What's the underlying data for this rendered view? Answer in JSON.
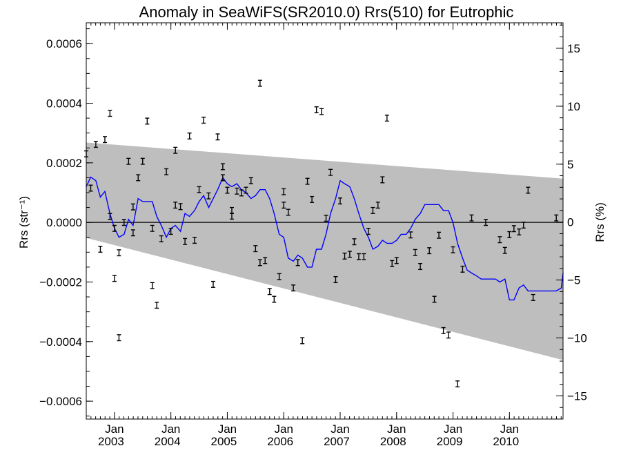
{
  "chart_data": {
    "type": "line",
    "title": "Anomaly in SeaWiFS(SR2010.0) Rrs(510) for Eutrophic",
    "ylabel_left": "Rrs (str⁻¹)",
    "ylabel_right": "Rrs (%)",
    "xlim": [
      2002.5,
      2010.95
    ],
    "ylim": [
      -0.00066,
      0.00067
    ],
    "y2lim": [
      -17,
      17.2
    ],
    "x_ticks": [
      {
        "x": 2003.0,
        "label": "Jan",
        "year": "2003"
      },
      {
        "x": 2004.0,
        "label": "Jan",
        "year": "2004"
      },
      {
        "x": 2005.0,
        "label": "Jan",
        "year": "2005"
      },
      {
        "x": 2006.0,
        "label": "Jan",
        "year": "2006"
      },
      {
        "x": 2007.0,
        "label": "Jan",
        "year": "2007"
      },
      {
        "x": 2008.0,
        "label": "Jan",
        "year": "2008"
      },
      {
        "x": 2009.0,
        "label": "Jan",
        "year": "2009"
      },
      {
        "x": 2010.0,
        "label": "Jan",
        "year": "2010"
      }
    ],
    "y_ticks": [
      {
        "v": 0.0006,
        "label": "0.0006"
      },
      {
        "v": 0.0004,
        "label": "0.0004"
      },
      {
        "v": 0.0002,
        "label": "0.0002"
      },
      {
        "v": 0.0,
        "label": "0.0000"
      },
      {
        "v": -0.0002,
        "label": "−0.0002"
      },
      {
        "v": -0.0004,
        "label": "−0.0004"
      },
      {
        "v": -0.0006,
        "label": "−0.0006"
      }
    ],
    "y2_ticks": [
      {
        "v": 15,
        "label": "15"
      },
      {
        "v": 10,
        "label": "10"
      },
      {
        "v": 5,
        "label": "5"
      },
      {
        "v": 0,
        "label": "0"
      },
      {
        "v": -5,
        "label": "−5"
      },
      {
        "v": -10,
        "label": "−10"
      },
      {
        "v": -15,
        "label": "−15"
      }
    ],
    "band": {
      "x": [
        2002.5,
        2010.95
      ],
      "upper": [
        0.000268,
        0.000147
      ],
      "lower": [
        -5.2e-05,
        -0.000462
      ],
      "color": "#bebebe"
    },
    "zero_line": 0.0,
    "series": [
      {
        "type": "line",
        "color": "#0000ff",
        "x": [
          2002.5,
          2002.58,
          2002.67,
          2002.75,
          2002.83,
          2002.92,
          2003.0,
          2003.08,
          2003.17,
          2003.25,
          2003.33,
          2003.42,
          2003.5,
          2003.58,
          2003.67,
          2003.75,
          2003.83,
          2003.92,
          2004.0,
          2004.08,
          2004.17,
          2004.25,
          2004.33,
          2004.42,
          2004.5,
          2004.58,
          2004.67,
          2004.75,
          2004.83,
          2004.92,
          2005.0,
          2005.08,
          2005.17,
          2005.25,
          2005.33,
          2005.42,
          2005.5,
          2005.58,
          2005.67,
          2005.75,
          2005.83,
          2005.92,
          2006.0,
          2006.08,
          2006.17,
          2006.25,
          2006.33,
          2006.42,
          2006.5,
          2006.58,
          2006.67,
          2006.75,
          2006.83,
          2006.92,
          2007.0,
          2007.08,
          2007.17,
          2007.25,
          2007.33,
          2007.42,
          2007.5,
          2007.58,
          2007.67,
          2007.75,
          2007.83,
          2007.92,
          2008.0,
          2008.08,
          2008.17,
          2008.25,
          2008.33,
          2008.42,
          2008.5,
          2008.58,
          2008.67,
          2008.75,
          2008.83,
          2008.92,
          2009.0,
          2009.08,
          2009.17,
          2009.25,
          2009.33,
          2009.42,
          2009.5,
          2009.58,
          2009.67,
          2009.75,
          2009.83,
          2009.92,
          2010.0,
          2010.08,
          2010.17,
          2010.25,
          2010.33,
          2010.42,
          2010.5,
          2010.58,
          2010.67,
          2010.75,
          2010.83,
          2010.92,
          2010.95
        ],
        "y": [
          0.00012,
          0.000152,
          0.00014,
          8.5e-05,
          0.000104,
          3e-05,
          -2e-05,
          -5e-05,
          -4e-05,
          1e-05,
          -1e-05,
          8e-05,
          7e-05,
          7e-05,
          7e-05,
          2e-05,
          -1e-05,
          -5e-05,
          -2e-05,
          -1e-05,
          -3e-05,
          3e-05,
          2e-05,
          4e-05,
          7e-05,
          9e-05,
          5e-05,
          8e-05,
          0.00011,
          0.00015,
          0.00013,
          0.00012,
          0.00013,
          0.00011,
          0.0001,
          8e-05,
          9e-05,
          0.00011,
          0.00011,
          8e-05,
          3e-05,
          -4e-05,
          -5e-05,
          -0.00012,
          -0.00013,
          -0.00011,
          -0.00012,
          -0.00015,
          -0.00015,
          -9e-05,
          -9e-05,
          -4e-05,
          3e-05,
          8e-05,
          0.00014,
          0.00013,
          0.00012,
          8e-05,
          3e-05,
          -2e-05,
          -5e-05,
          -9e-05,
          -8e-05,
          -6e-05,
          -7e-05,
          -7e-05,
          -6e-05,
          -4e-05,
          -4e-05,
          -2e-05,
          1e-05,
          3e-05,
          6e-05,
          6e-05,
          6e-05,
          6e-05,
          4e-05,
          4e-05,
          0.0,
          -7e-05,
          -0.00012,
          -0.00016,
          -0.00017,
          -0.00018,
          -0.00019,
          -0.00019,
          -0.00019,
          -0.00019,
          -0.0002,
          -0.00019,
          -0.00026,
          -0.00026,
          -0.00022,
          -0.00021,
          -0.00023,
          -0.00023,
          -0.00023,
          -0.00023,
          -0.00023,
          -0.00023,
          -0.00023,
          -0.00022,
          -0.00017
        ]
      },
      {
        "type": "errorbar",
        "color": "#000000",
        "err": 1e-05,
        "x": [
          2002.5,
          2002.58,
          2002.67,
          2002.75,
          2002.83,
          2002.92,
          2002.92,
          2003.0,
          2003.0,
          2003.08,
          2003.08,
          2003.17,
          2003.25,
          2003.33,
          2003.33,
          2003.42,
          2003.5,
          2003.58,
          2003.67,
          2003.67,
          2003.75,
          2003.83,
          2003.92,
          2004.0,
          2004.08,
          2004.08,
          2004.17,
          2004.25,
          2004.33,
          2004.42,
          2004.5,
          2004.58,
          2004.67,
          2004.75,
          2004.83,
          2004.92,
          2004.92,
          2005.0,
          2005.08,
          2005.08,
          2005.17,
          2005.25,
          2005.33,
          2005.42,
          2005.5,
          2005.58,
          2005.58,
          2005.67,
          2005.75,
          2005.83,
          2005.92,
          2006.0,
          2006.0,
          2006.08,
          2006.17,
          2006.25,
          2006.33,
          2006.42,
          2006.5,
          2006.58,
          2006.67,
          2006.75,
          2006.83,
          2006.92,
          2007.0,
          2007.08,
          2007.17,
          2007.25,
          2007.33,
          2007.42,
          2007.5,
          2007.58,
          2007.67,
          2007.75,
          2007.83,
          2007.92,
          2008.0,
          2008.25,
          2008.33,
          2008.42,
          2008.58,
          2008.67,
          2008.75,
          2008.83,
          2008.92,
          2009.0,
          2009.08,
          2009.17,
          2009.33,
          2009.58,
          2009.83,
          2009.92,
          2010.0,
          2010.08,
          2010.17,
          2010.25,
          2010.33,
          2010.42,
          2010.83
        ],
        "y": [
          0.00023,
          0.000115,
          0.000262,
          -9e-05,
          0.000278,
          2e-05,
          0.000366,
          -2e-05,
          -0.000188,
          -0.000102,
          -0.000387,
          0.0,
          0.000205,
          -3.5e-05,
          5.2e-05,
          0.00015,
          0.000205,
          0.00034,
          -0.000212,
          -2e-05,
          -0.000278,
          -5.5e-05,
          0.00017,
          -3e-05,
          5.8e-05,
          0.000242,
          5.3e-05,
          -6.4e-05,
          0.00029,
          -6e-05,
          0.00011,
          0.000343,
          8.9e-05,
          -0.000208,
          0.000287,
          0.00015,
          0.000187,
          0.000108,
          2.1e-05,
          4e-05,
          0.000105,
          9.9e-05,
          0.000108,
          0.00014,
          -8.8e-05,
          0.000467,
          -0.000135,
          -0.000128,
          -0.000232,
          -0.000258,
          -0.000182,
          5.8e-05,
          0.000103,
          3.4e-05,
          -0.00022,
          -0.000135,
          -0.000397,
          0.000138,
          7.7e-05,
          0.000378,
          0.000372,
          1.4e-05,
          0.000168,
          -0.000192,
          7.2e-05,
          -0.000113,
          -0.000107,
          -6.5e-05,
          -0.000115,
          -0.000115,
          -3e-05,
          4e-05,
          5.8e-05,
          0.000143,
          0.00035,
          -0.000138,
          -0.000128,
          -4.2e-05,
          -0.000101,
          -0.000148,
          -9.5e-05,
          -0.000258,
          -4.3e-05,
          -0.000363,
          -0.000378,
          -9.2e-05,
          -0.000542,
          -0.000157,
          1.5e-05,
          0.0,
          -5.8e-05,
          -9.4e-05,
          -4.1e-05,
          -2.1e-05,
          -3.2e-05,
          -9e-06,
          0.000108,
          -0.000252,
          1.5e-05
        ]
      }
    ]
  }
}
